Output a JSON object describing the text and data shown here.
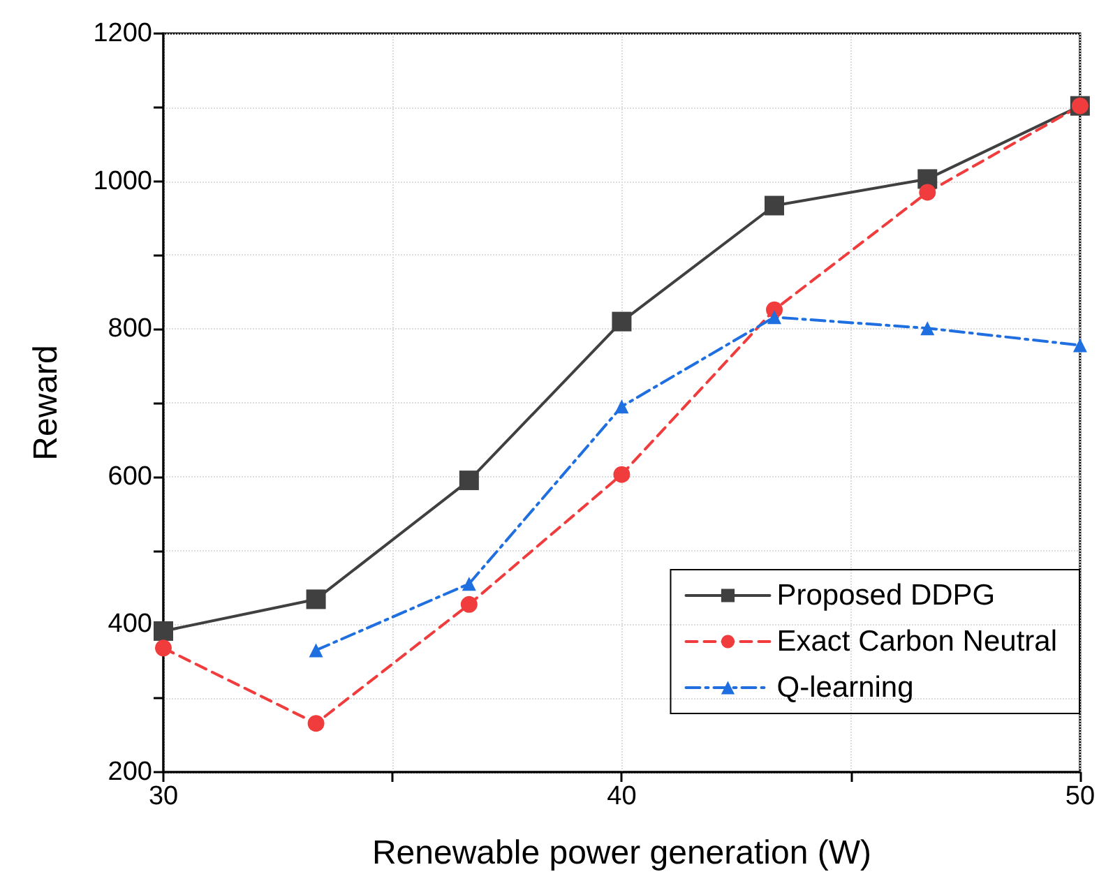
{
  "chart_data": {
    "type": "line",
    "xlabel": "Renewable power generation (W)",
    "ylabel": "Reward",
    "xlim": [
      30,
      50
    ],
    "xticks": [
      30,
      {
        "value": 35,
        "label": null
      },
      40,
      {
        "value": 45,
        "label": null
      },
      50
    ],
    "ylim": [
      200,
      1200
    ],
    "yticks": [
      200,
      {
        "value": 300,
        "label": null
      },
      400,
      {
        "value": 500,
        "label": null
      },
      600,
      {
        "value": 700,
        "label": null
      },
      800,
      {
        "value": 900,
        "label": null
      },
      1000,
      {
        "value": 1100,
        "label": null
      },
      1200
    ],
    "grid": true,
    "legend": "bottom right",
    "series": [
      {
        "name": "Proposed DDPG",
        "color": "#404040",
        "marker": "square",
        "line_style": "solid",
        "x": [
          30,
          33.33,
          36.67,
          40,
          43.33,
          46.67,
          50
        ],
        "values": [
          391,
          434,
          595,
          810,
          967,
          1003,
          1102
        ]
      },
      {
        "name": "Exact Carbon Neutral",
        "color": "#f03c3c",
        "marker": "circle",
        "line_style": "dashed",
        "x": [
          30,
          33.33,
          36.67,
          40,
          43.33,
          46.67,
          50
        ],
        "values": [
          368,
          266,
          427,
          603,
          826,
          985,
          1102
        ]
      },
      {
        "name": "Q-learning",
        "color": "#1f6fe0",
        "marker": "triangle",
        "line_style": "dashdot",
        "x": [
          33.33,
          36.67,
          40,
          43.33,
          46.67,
          50
        ],
        "values": [
          365,
          455,
          695,
          816,
          801,
          778
        ]
      }
    ]
  }
}
